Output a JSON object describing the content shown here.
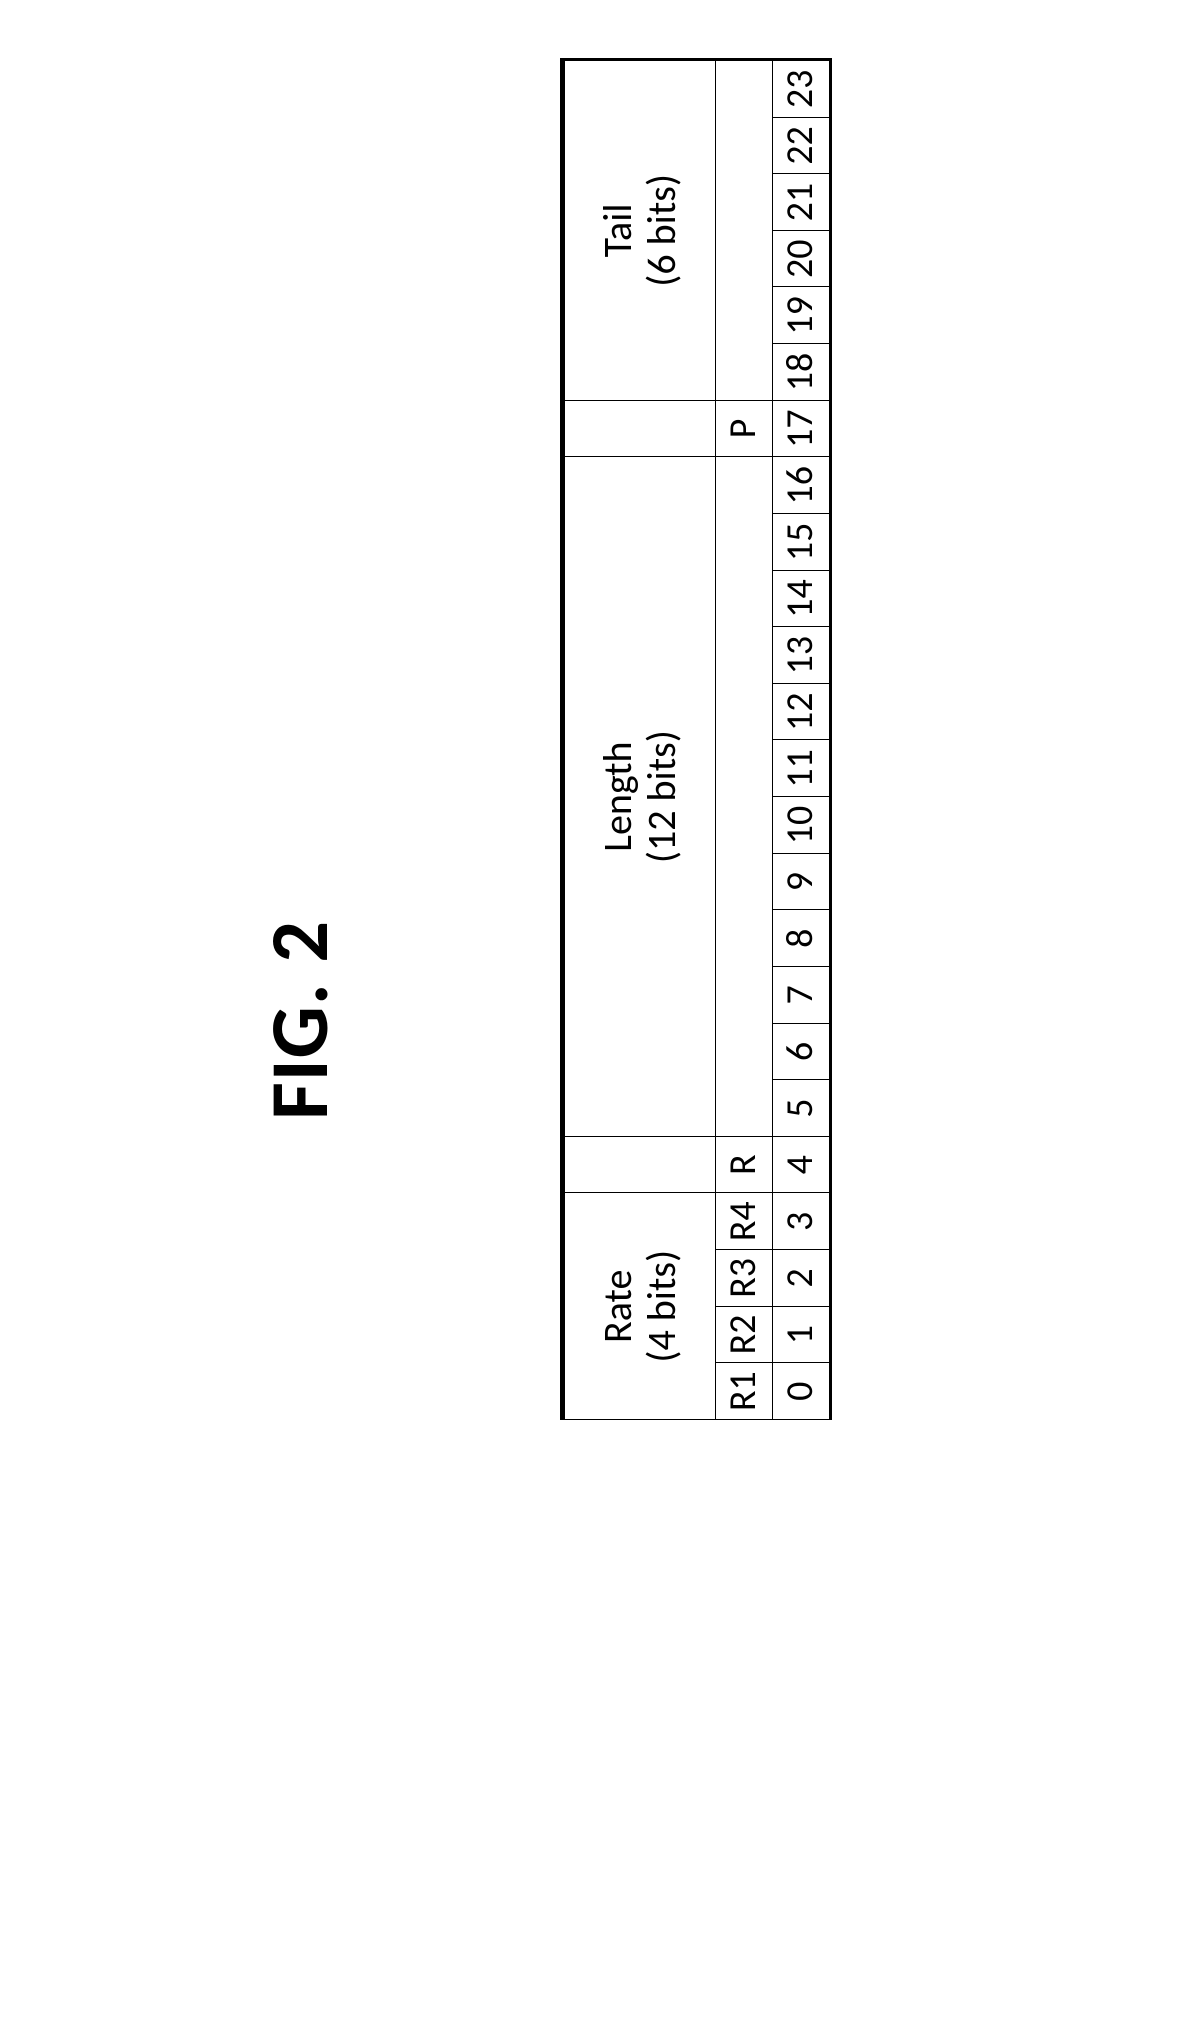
{
  "figure": {
    "title": "FIG. 2",
    "title_fontsize": 82,
    "font_family": "Calibri, Arial, sans-serif",
    "text_color": "#000000",
    "background_color": "#ffffff",
    "rotation_deg": -90
  },
  "bitfield": {
    "type": "bitfield-table",
    "total_bits": 24,
    "border_color": "#000000",
    "border_width_outer": 2,
    "border_width_inner": 1,
    "cell_fontsize": 40,
    "sub_fontsize": 38,
    "idx_fontsize": 38,
    "fields": [
      {
        "name": "Rate",
        "bits_label": "(4 bits)",
        "span": 4,
        "start": 0,
        "end": 3
      },
      {
        "name": "",
        "bits_label": "",
        "span": 1,
        "start": 4,
        "end": 4
      },
      {
        "name": "Length",
        "bits_label": "(12 bits)",
        "span": 12,
        "start": 5,
        "end": 16
      },
      {
        "name": "",
        "bits_label": "",
        "span": 1,
        "start": 17,
        "end": 17
      },
      {
        "name": "Tail",
        "bits_label": "(6 bits)",
        "span": 6,
        "start": 18,
        "end": 23
      }
    ],
    "sub_labels": [
      {
        "text": "R1",
        "span": 1
      },
      {
        "text": "R2",
        "span": 1
      },
      {
        "text": "R3",
        "span": 1
      },
      {
        "text": "R4",
        "span": 1
      },
      {
        "text": "R",
        "span": 1
      },
      {
        "text": "",
        "span": 12
      },
      {
        "text": "P",
        "span": 1
      },
      {
        "text": "",
        "span": 6
      }
    ],
    "indices": [
      "0",
      "1",
      "2",
      "3",
      "4",
      "5",
      "6",
      "7",
      "8",
      "9",
      "10",
      "11",
      "12",
      "13",
      "14",
      "15",
      "16",
      "17",
      "18",
      "19",
      "20",
      "21",
      "22",
      "23"
    ]
  }
}
